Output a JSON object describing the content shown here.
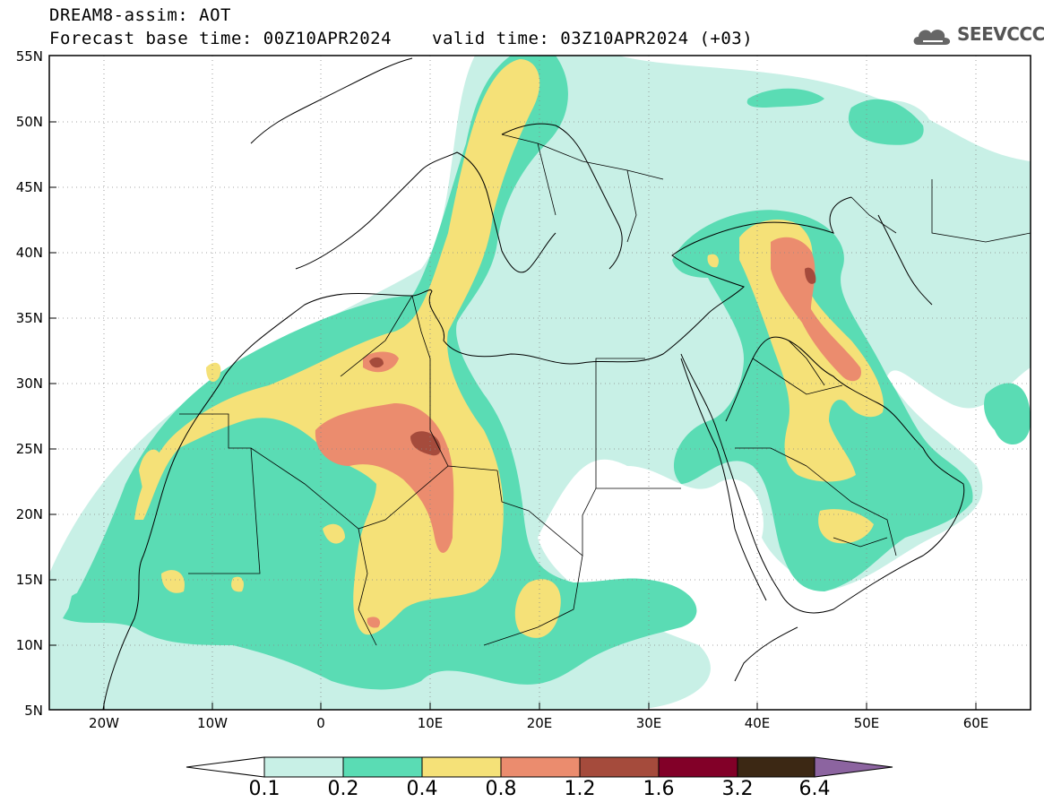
{
  "header": {
    "title_line1": "DREAM8-assim: AOT",
    "title_line2": "Forecast base time: 00Z10APR2024",
    "valid_time": "valid time: 03Z10APR2024 (+03)",
    "logo_text": "SEEVCCC",
    "logo_icon": "cloud-icon"
  },
  "axes": {
    "lat_labels": [
      "55N",
      "50N",
      "45N",
      "40N",
      "35N",
      "30N",
      "25N",
      "20N",
      "15N",
      "10N",
      "5N"
    ],
    "lon_labels": [
      "20W",
      "10W",
      "0",
      "10E",
      "20E",
      "30E",
      "40E",
      "50E",
      "60E"
    ]
  },
  "colorbar": {
    "labels": [
      "0.1",
      "0.2",
      "0.4",
      "0.8",
      "1.2",
      "1.6",
      "3.2",
      "6.4"
    ],
    "colors": [
      "#c8f0e6",
      "#5adcb4",
      "#f5e178",
      "#eb8c6e",
      "#a54b3c",
      "#820028",
      "#3c2814",
      "#8c64a0"
    ],
    "under_color": "#ffffff"
  },
  "map_colors": {
    "c1": "#c8f0e6",
    "c2": "#5adcb4",
    "c3": "#f5e178",
    "c4": "#eb8c6e",
    "c5": "#a54b3c"
  }
}
